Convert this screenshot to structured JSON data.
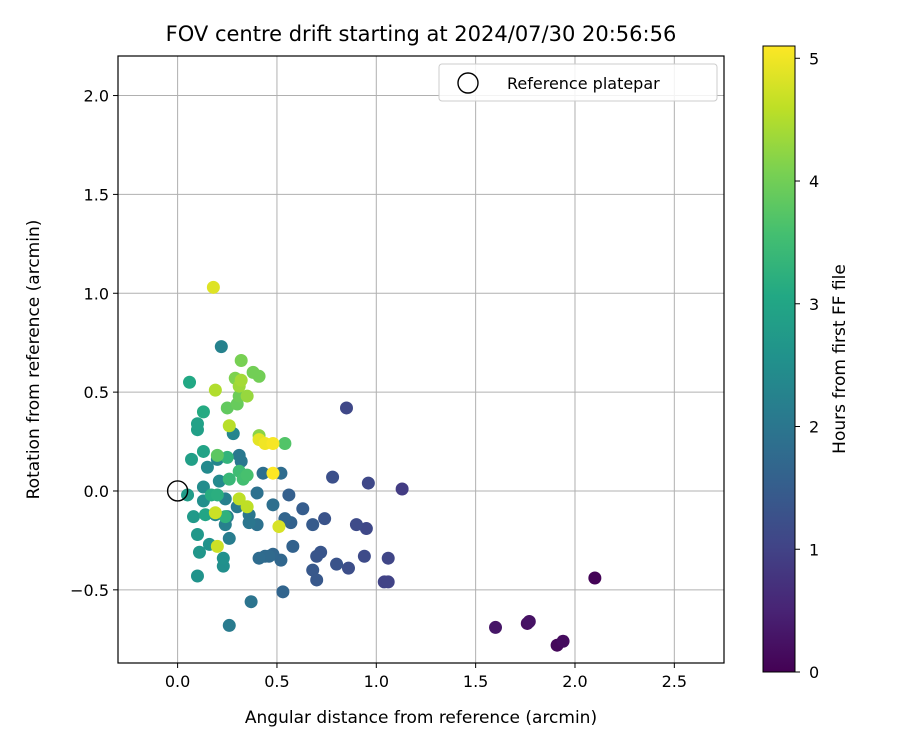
{
  "chart_data": {
    "type": "scatter",
    "title": "FOV centre drift starting at 2024/07/30 20:56:56",
    "xlabel": "Angular distance from reference (arcmin)",
    "ylabel": "Rotation from reference (arcmin)",
    "xlim": [
      -0.3,
      2.75
    ],
    "ylim": [
      -0.87,
      2.2
    ],
    "xticks": [
      0.0,
      0.5,
      1.0,
      1.5,
      2.0,
      2.5
    ],
    "xtick_labels": [
      "0.0",
      "0.5",
      "1.0",
      "1.5",
      "2.0",
      "2.5"
    ],
    "yticks": [
      -0.5,
      0.0,
      0.5,
      1.0,
      1.5,
      2.0
    ],
    "ytick_labels": [
      "−0.5",
      "0.0",
      "0.5",
      "1.0",
      "1.5",
      "2.0"
    ],
    "grid": true,
    "legend": {
      "placement": "top-right",
      "entries": [
        "Reference platepar"
      ]
    },
    "reference_point": {
      "x": 0.0,
      "y": 0.0
    },
    "colorbar": {
      "label": "Hours from first FF file",
      "range": [
        0,
        5.1
      ],
      "ticks": [
        0,
        1,
        2,
        3,
        4,
        5
      ],
      "tick_labels": [
        "0",
        "1",
        "2",
        "3",
        "4",
        "5"
      ],
      "colormap": "viridis"
    },
    "points": [
      {
        "x": 2.1,
        "y": -0.44,
        "c": 0.05
      },
      {
        "x": 1.91,
        "y": -0.78,
        "c": 0.1
      },
      {
        "x": 1.94,
        "y": -0.76,
        "c": 0.15
      },
      {
        "x": 1.76,
        "y": -0.67,
        "c": 0.2
      },
      {
        "x": 1.77,
        "y": -0.66,
        "c": 0.25
      },
      {
        "x": 1.6,
        "y": -0.69,
        "c": 0.3
      },
      {
        "x": 1.13,
        "y": 0.01,
        "c": 0.9
      },
      {
        "x": 1.04,
        "y": -0.46,
        "c": 1.0
      },
      {
        "x": 1.06,
        "y": -0.46,
        "c": 1.0
      },
      {
        "x": 1.06,
        "y": -0.34,
        "c": 1.05
      },
      {
        "x": 0.96,
        "y": 0.04,
        "c": 1.1
      },
      {
        "x": 0.95,
        "y": -0.19,
        "c": 1.1
      },
      {
        "x": 0.9,
        "y": -0.17,
        "c": 1.15
      },
      {
        "x": 0.94,
        "y": -0.33,
        "c": 1.15
      },
      {
        "x": 0.85,
        "y": 0.42,
        "c": 1.1
      },
      {
        "x": 0.86,
        "y": -0.39,
        "c": 1.2
      },
      {
        "x": 0.78,
        "y": 0.07,
        "c": 1.25
      },
      {
        "x": 0.8,
        "y": -0.37,
        "c": 1.3
      },
      {
        "x": 0.74,
        "y": -0.14,
        "c": 1.3
      },
      {
        "x": 0.72,
        "y": -0.31,
        "c": 1.35
      },
      {
        "x": 0.7,
        "y": -0.33,
        "c": 1.35
      },
      {
        "x": 0.68,
        "y": -0.4,
        "c": 1.4
      },
      {
        "x": 0.7,
        "y": -0.45,
        "c": 1.4
      },
      {
        "x": 0.68,
        "y": -0.17,
        "c": 1.45
      },
      {
        "x": 0.63,
        "y": -0.09,
        "c": 1.5
      },
      {
        "x": 0.56,
        "y": -0.02,
        "c": 1.55
      },
      {
        "x": 0.57,
        "y": -0.16,
        "c": 1.6
      },
      {
        "x": 0.58,
        "y": -0.28,
        "c": 1.6
      },
      {
        "x": 0.54,
        "y": -0.14,
        "c": 1.65
      },
      {
        "x": 0.53,
        "y": -0.51,
        "c": 1.65
      },
      {
        "x": 0.52,
        "y": -0.35,
        "c": 1.7
      },
      {
        "x": 0.48,
        "y": -0.32,
        "c": 1.7
      },
      {
        "x": 0.46,
        "y": -0.33,
        "c": 1.75
      },
      {
        "x": 0.44,
        "y": -0.33,
        "c": 1.75
      },
      {
        "x": 0.41,
        "y": -0.34,
        "c": 1.8
      },
      {
        "x": 0.52,
        "y": 0.09,
        "c": 1.8
      },
      {
        "x": 0.48,
        "y": -0.07,
        "c": 1.85
      },
      {
        "x": 0.43,
        "y": 0.09,
        "c": 1.85
      },
      {
        "x": 0.4,
        "y": -0.01,
        "c": 1.9
      },
      {
        "x": 0.4,
        "y": -0.17,
        "c": 1.9
      },
      {
        "x": 0.37,
        "y": -0.56,
        "c": 1.95
      },
      {
        "x": 0.36,
        "y": -0.12,
        "c": 2.0
      },
      {
        "x": 0.36,
        "y": -0.16,
        "c": 2.0
      },
      {
        "x": 0.31,
        "y": 0.18,
        "c": 2.05
      },
      {
        "x": 0.32,
        "y": 0.15,
        "c": 2.05
      },
      {
        "x": 0.3,
        "y": -0.08,
        "c": 2.1
      },
      {
        "x": 0.26,
        "y": -0.68,
        "c": 2.1
      },
      {
        "x": 0.26,
        "y": -0.24,
        "c": 2.15
      },
      {
        "x": 0.25,
        "y": -0.13,
        "c": 2.15
      },
      {
        "x": 0.24,
        "y": -0.17,
        "c": 2.2
      },
      {
        "x": 0.24,
        "y": -0.04,
        "c": 2.2
      },
      {
        "x": 0.22,
        "y": 0.73,
        "c": 2.25
      },
      {
        "x": 0.28,
        "y": 0.29,
        "c": 2.3
      },
      {
        "x": 0.2,
        "y": 0.16,
        "c": 2.3
      },
      {
        "x": 0.19,
        "y": -0.12,
        "c": 2.35
      },
      {
        "x": 0.21,
        "y": 0.05,
        "c": 2.4
      },
      {
        "x": 0.15,
        "y": 0.12,
        "c": 2.4
      },
      {
        "x": 0.13,
        "y": 0.02,
        "c": 2.45
      },
      {
        "x": 0.13,
        "y": -0.05,
        "c": 2.5
      },
      {
        "x": 0.23,
        "y": -0.38,
        "c": 2.5
      },
      {
        "x": 0.23,
        "y": -0.34,
        "c": 2.55
      },
      {
        "x": 0.16,
        "y": -0.27,
        "c": 2.6
      },
      {
        "x": 0.1,
        "y": -0.43,
        "c": 2.6
      },
      {
        "x": 0.11,
        "y": -0.31,
        "c": 2.65
      },
      {
        "x": 0.1,
        "y": -0.22,
        "c": 2.7
      },
      {
        "x": 0.08,
        "y": -0.13,
        "c": 2.75
      },
      {
        "x": 0.05,
        "y": -0.02,
        "c": 2.8
      },
      {
        "x": 0.07,
        "y": 0.16,
        "c": 2.85
      },
      {
        "x": 0.1,
        "y": 0.31,
        "c": 2.85
      },
      {
        "x": 0.1,
        "y": 0.34,
        "c": 2.9
      },
      {
        "x": 0.13,
        "y": 0.2,
        "c": 2.95
      },
      {
        "x": 0.14,
        "y": -0.12,
        "c": 3.0
      },
      {
        "x": 0.06,
        "y": 0.55,
        "c": 3.05
      },
      {
        "x": 0.13,
        "y": 0.4,
        "c": 3.1
      },
      {
        "x": 0.17,
        "y": -0.02,
        "c": 3.15
      },
      {
        "x": 0.2,
        "y": -0.02,
        "c": 3.2
      },
      {
        "x": 0.24,
        "y": -0.13,
        "c": 3.25
      },
      {
        "x": 0.25,
        "y": 0.17,
        "c": 3.3
      },
      {
        "x": 0.26,
        "y": 0.06,
        "c": 3.4
      },
      {
        "x": 0.31,
        "y": 0.1,
        "c": 3.5
      },
      {
        "x": 0.33,
        "y": 0.06,
        "c": 3.55
      },
      {
        "x": 0.35,
        "y": 0.08,
        "c": 3.6
      },
      {
        "x": 0.54,
        "y": 0.24,
        "c": 3.7
      },
      {
        "x": 0.2,
        "y": 0.18,
        "c": 3.8
      },
      {
        "x": 0.25,
        "y": 0.42,
        "c": 3.85
      },
      {
        "x": 0.3,
        "y": 0.44,
        "c": 3.9
      },
      {
        "x": 0.31,
        "y": 0.48,
        "c": 3.95
      },
      {
        "x": 0.38,
        "y": 0.6,
        "c": 4.0
      },
      {
        "x": 0.41,
        "y": 0.58,
        "c": 4.0
      },
      {
        "x": 0.32,
        "y": 0.66,
        "c": 4.05
      },
      {
        "x": 0.29,
        "y": 0.57,
        "c": 4.1
      },
      {
        "x": 0.41,
        "y": 0.28,
        "c": 4.2
      },
      {
        "x": 0.35,
        "y": 0.48,
        "c": 4.3
      },
      {
        "x": 0.31,
        "y": 0.53,
        "c": 4.35
      },
      {
        "x": 0.32,
        "y": 0.56,
        "c": 4.4
      },
      {
        "x": 0.19,
        "y": 0.51,
        "c": 4.5
      },
      {
        "x": 0.26,
        "y": 0.33,
        "c": 4.55
      },
      {
        "x": 0.35,
        "y": -0.08,
        "c": 4.6
      },
      {
        "x": 0.31,
        "y": -0.04,
        "c": 4.6
      },
      {
        "x": 0.19,
        "y": -0.11,
        "c": 4.7
      },
      {
        "x": 0.2,
        "y": -0.28,
        "c": 4.7
      },
      {
        "x": 0.51,
        "y": -0.18,
        "c": 4.8
      },
      {
        "x": 0.18,
        "y": 1.03,
        "c": 4.85
      },
      {
        "x": 0.41,
        "y": 0.26,
        "c": 4.9
      },
      {
        "x": 0.44,
        "y": 0.24,
        "c": 5.0
      },
      {
        "x": 0.48,
        "y": 0.24,
        "c": 5.05
      },
      {
        "x": 0.48,
        "y": 0.09,
        "c": 5.1
      }
    ]
  }
}
